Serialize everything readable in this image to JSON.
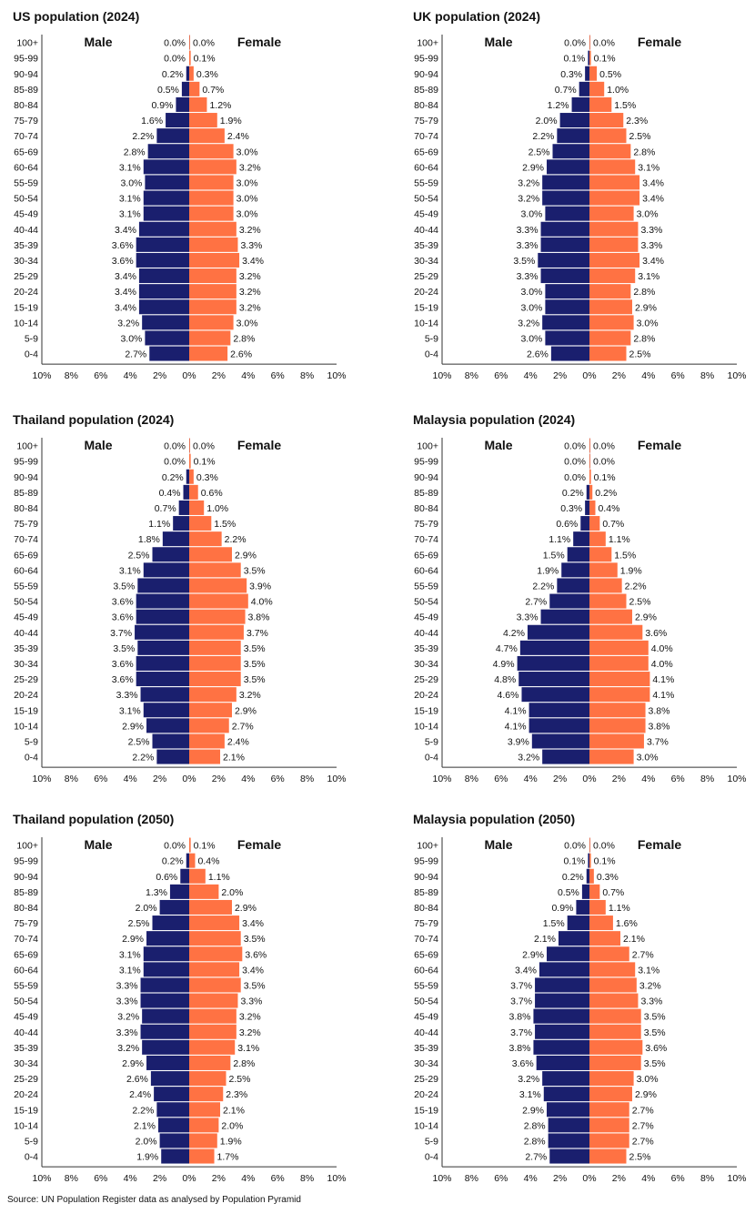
{
  "colors": {
    "male": "#1a1f6e",
    "female": "#ff7243"
  },
  "source": "Source: UN Population Register data as analysed by Population Pyramid",
  "chart_data": [
    {
      "type": "bar",
      "title": "US population (2024)",
      "male_label": "Male",
      "female_label": "Female",
      "categories": [
        "100+",
        "95-99",
        "90-94",
        "85-89",
        "80-84",
        "75-79",
        "70-74",
        "65-69",
        "60-64",
        "55-59",
        "50-54",
        "45-49",
        "40-44",
        "35-39",
        "30-34",
        "25-29",
        "20-24",
        "15-19",
        "10-14",
        "5-9",
        "0-4"
      ],
      "series": [
        {
          "name": "Male",
          "values": [
            0.0,
            0.0,
            0.2,
            0.5,
            0.9,
            1.6,
            2.2,
            2.8,
            3.1,
            3.0,
            3.1,
            3.1,
            3.4,
            3.6,
            3.6,
            3.4,
            3.4,
            3.4,
            3.2,
            3.0,
            2.7
          ]
        },
        {
          "name": "Female",
          "values": [
            0.0,
            0.1,
            0.3,
            0.7,
            1.2,
            1.9,
            2.4,
            3.0,
            3.2,
            3.0,
            3.0,
            3.0,
            3.2,
            3.3,
            3.4,
            3.2,
            3.2,
            3.2,
            3.0,
            2.8,
            2.6
          ]
        }
      ],
      "xlim": [
        -10,
        10
      ],
      "xticks": [
        "10%",
        "8%",
        "6%",
        "4%",
        "2%",
        "0%",
        "2%",
        "4%",
        "6%",
        "8%",
        "10%"
      ]
    },
    {
      "type": "bar",
      "title": "UK population (2024)",
      "male_label": "Male",
      "female_label": "Female",
      "categories": [
        "100+",
        "95-99",
        "90-94",
        "85-89",
        "80-84",
        "75-79",
        "70-74",
        "65-69",
        "60-64",
        "55-59",
        "50-54",
        "45-49",
        "40-44",
        "35-39",
        "30-34",
        "25-29",
        "20-24",
        "15-19",
        "10-14",
        "5-9",
        "0-4"
      ],
      "series": [
        {
          "name": "Male",
          "values": [
            0.0,
            0.1,
            0.3,
            0.7,
            1.2,
            2.0,
            2.2,
            2.5,
            2.9,
            3.2,
            3.2,
            3.0,
            3.3,
            3.3,
            3.5,
            3.3,
            3.0,
            3.0,
            3.2,
            3.0,
            2.6
          ]
        },
        {
          "name": "Female",
          "values": [
            0.0,
            0.1,
            0.5,
            1.0,
            1.5,
            2.3,
            2.5,
            2.8,
            3.1,
            3.4,
            3.4,
            3.0,
            3.3,
            3.3,
            3.4,
            3.1,
            2.8,
            2.9,
            3.0,
            2.8,
            2.5
          ]
        }
      ],
      "xlim": [
        -10,
        10
      ],
      "xticks": [
        "10%",
        "8%",
        "6%",
        "4%",
        "2%",
        "0%",
        "2%",
        "4%",
        "6%",
        "8%",
        "10%"
      ]
    },
    {
      "type": "bar",
      "title": "Thailand population  (2024)",
      "male_label": "Male",
      "female_label": "Female",
      "categories": [
        "100+",
        "95-99",
        "90-94",
        "85-89",
        "80-84",
        "75-79",
        "70-74",
        "65-69",
        "60-64",
        "55-59",
        "50-54",
        "45-49",
        "40-44",
        "35-39",
        "30-34",
        "25-29",
        "20-24",
        "15-19",
        "10-14",
        "5-9",
        "0-4"
      ],
      "series": [
        {
          "name": "Male",
          "values": [
            0.0,
            0.0,
            0.2,
            0.4,
            0.7,
            1.1,
            1.8,
            2.5,
            3.1,
            3.5,
            3.6,
            3.6,
            3.7,
            3.5,
            3.6,
            3.6,
            3.3,
            3.1,
            2.9,
            2.5,
            2.2
          ]
        },
        {
          "name": "Female",
          "values": [
            0.0,
            0.1,
            0.3,
            0.6,
            1.0,
            1.5,
            2.2,
            2.9,
            3.5,
            3.9,
            4.0,
            3.8,
            3.7,
            3.5,
            3.5,
            3.5,
            3.2,
            2.9,
            2.7,
            2.4,
            2.1
          ]
        }
      ],
      "xlim": [
        -10,
        10
      ],
      "xticks": [
        "10%",
        "8%",
        "6%",
        "4%",
        "2%",
        "0%",
        "2%",
        "4%",
        "6%",
        "8%",
        "10%"
      ]
    },
    {
      "type": "bar",
      "title": "Malaysia population (2024)",
      "male_label": "Male",
      "female_label": "Female",
      "categories": [
        "100+",
        "95-99",
        "90-94",
        "85-89",
        "80-84",
        "75-79",
        "70-74",
        "65-69",
        "60-64",
        "55-59",
        "50-54",
        "45-49",
        "40-44",
        "35-39",
        "30-34",
        "25-29",
        "20-24",
        "15-19",
        "10-14",
        "5-9",
        "0-4"
      ],
      "series": [
        {
          "name": "Male",
          "values": [
            0.0,
            0.0,
            0.0,
            0.2,
            0.3,
            0.6,
            1.1,
            1.5,
            1.9,
            2.2,
            2.7,
            3.3,
            4.2,
            4.7,
            4.9,
            4.8,
            4.6,
            4.1,
            4.1,
            3.9,
            3.2
          ]
        },
        {
          "name": "Female",
          "values": [
            0.0,
            0.0,
            0.1,
            0.2,
            0.4,
            0.7,
            1.1,
            1.5,
            1.9,
            2.2,
            2.5,
            2.9,
            3.6,
            4.0,
            4.0,
            4.1,
            4.1,
            3.8,
            3.8,
            3.7,
            3.0
          ]
        }
      ],
      "xlim": [
        -10,
        10
      ],
      "xticks": [
        "10%",
        "8%",
        "6%",
        "4%",
        "2%",
        "0%",
        "2%",
        "4%",
        "6%",
        "8%",
        "10%"
      ]
    },
    {
      "type": "bar",
      "title": "Thailand population (2050)",
      "male_label": "Male",
      "female_label": "Female",
      "categories": [
        "100+",
        "95-99",
        "90-94",
        "85-89",
        "80-84",
        "75-79",
        "70-74",
        "65-69",
        "60-64",
        "55-59",
        "50-54",
        "45-49",
        "40-44",
        "35-39",
        "30-34",
        "25-29",
        "20-24",
        "15-19",
        "10-14",
        "5-9",
        "0-4"
      ],
      "series": [
        {
          "name": "Male",
          "values": [
            0.0,
            0.2,
            0.6,
            1.3,
            2.0,
            2.5,
            2.9,
            3.1,
            3.1,
            3.3,
            3.3,
            3.2,
            3.3,
            3.2,
            2.9,
            2.6,
            2.4,
            2.2,
            2.1,
            2.0,
            1.9
          ]
        },
        {
          "name": "Female",
          "values": [
            0.1,
            0.4,
            1.1,
            2.0,
            2.9,
            3.4,
            3.5,
            3.6,
            3.4,
            3.5,
            3.3,
            3.2,
            3.2,
            3.1,
            2.8,
            2.5,
            2.3,
            2.1,
            2.0,
            1.9,
            1.7
          ]
        }
      ],
      "xlim": [
        -10,
        10
      ],
      "xticks": [
        "10%",
        "8%",
        "6%",
        "4%",
        "2%",
        "0%",
        "2%",
        "4%",
        "6%",
        "8%",
        "10%"
      ]
    },
    {
      "type": "bar",
      "title": "Malaysia population (2050)",
      "male_label": "Male",
      "female_label": "Female",
      "categories": [
        "100+",
        "95-99",
        "90-94",
        "85-89",
        "80-84",
        "75-79",
        "70-74",
        "65-69",
        "60-64",
        "55-59",
        "50-54",
        "45-49",
        "40-44",
        "35-39",
        "30-34",
        "25-29",
        "20-24",
        "15-19",
        "10-14",
        "5-9",
        "0-4"
      ],
      "series": [
        {
          "name": "Male",
          "values": [
            0.0,
            0.1,
            0.2,
            0.5,
            0.9,
            1.5,
            2.1,
            2.9,
            3.4,
            3.7,
            3.7,
            3.8,
            3.7,
            3.8,
            3.6,
            3.2,
            3.1,
            2.9,
            2.8,
            2.8,
            2.7
          ]
        },
        {
          "name": "Female",
          "values": [
            0.0,
            0.1,
            0.3,
            0.7,
            1.1,
            1.6,
            2.1,
            2.7,
            3.1,
            3.2,
            3.3,
            3.5,
            3.5,
            3.6,
            3.5,
            3.0,
            2.9,
            2.7,
            2.7,
            2.7,
            2.5
          ]
        }
      ],
      "xlim": [
        -10,
        10
      ],
      "xticks": [
        "10%",
        "8%",
        "6%",
        "4%",
        "2%",
        "0%",
        "2%",
        "4%",
        "6%",
        "8%",
        "10%"
      ]
    }
  ]
}
